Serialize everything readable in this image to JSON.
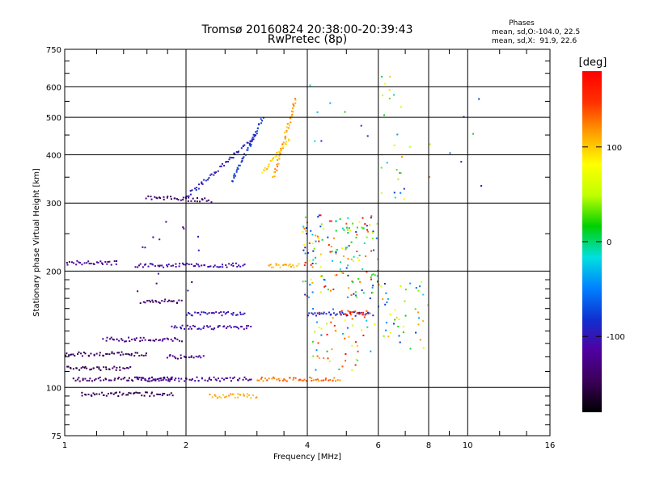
{
  "chart_data": {
    "type": "scatter",
    "title": "Tromsø 20160824 20:38:00-20:39:43",
    "subtitle": "RwPretec (8p)",
    "xlabel": "Frequency [MHz]",
    "ylabel": "Stationary phase Virtual Height [km]",
    "x_scale": "log",
    "y_scale": "log",
    "xlim": [
      1,
      16
    ],
    "ylim": [
      75,
      750
    ],
    "x_ticks": [
      1,
      2,
      4,
      6,
      8,
      10,
      16
    ],
    "y_ticks": [
      75,
      100,
      200,
      300,
      400,
      500,
      600,
      750
    ],
    "grid": true,
    "stats": {
      "heading": "Phases",
      "o_line": "mean, sd,O:-104.0, 22.5",
      "x_line": "mean, sd,X:  91.9, 22.6"
    },
    "colorbar": {
      "label": "[deg]",
      "range": [
        -180,
        180
      ],
      "ticks": [
        100,
        0,
        -100
      ],
      "colors": [
        "#000000",
        "#3a0058",
        "#5000a0",
        "#1030d0",
        "#0080ff",
        "#00e0e0",
        "#00d000",
        "#c0ff00",
        "#ffff00",
        "#ffa000",
        "#ff3000",
        "#ff0000"
      ]
    },
    "traces": [
      {
        "x": [
          1.0,
          1.35
        ],
        "y": [
          210,
          210
        ],
        "phase": -120
      },
      {
        "x": [
          1.5,
          2.8
        ],
        "y": [
          207,
          207
        ],
        "phase": -110
      },
      {
        "x": [
          3.2,
          3.8
        ],
        "y": [
          207,
          207
        ],
        "phase": 110
      },
      {
        "x": [
          1.0,
          1.6
        ],
        "y": [
          122,
          122
        ],
        "phase": -145
      },
      {
        "x": [
          1.25,
          1.95
        ],
        "y": [
          133,
          133
        ],
        "phase": -130
      },
      {
        "x": [
          1.0,
          1.45
        ],
        "y": [
          112,
          112
        ],
        "phase": -150
      },
      {
        "x": [
          1.05,
          1.85
        ],
        "y": [
          105,
          105
        ],
        "phase": -140
      },
      {
        "x": [
          1.5,
          2.9
        ],
        "y": [
          105,
          105
        ],
        "phase": -115
      },
      {
        "x": [
          1.1,
          1.85
        ],
        "y": [
          96,
          96
        ],
        "phase": -150
      },
      {
        "x": [
          2.3,
          3.0
        ],
        "y": [
          95,
          95
        ],
        "phase": 110
      },
      {
        "x": [
          3.0,
          4.8
        ],
        "y": [
          105,
          105
        ],
        "phase": 130
      },
      {
        "x": [
          1.55,
          1.95
        ],
        "y": [
          167,
          167
        ],
        "phase": -140
      },
      {
        "x": [
          1.85,
          2.9
        ],
        "y": [
          143,
          143
        ],
        "phase": -110
      },
      {
        "x": [
          2.0,
          2.8
        ],
        "y": [
          155,
          155
        ],
        "phase": -100
      },
      {
        "x": [
          1.8,
          2.2
        ],
        "y": [
          120,
          120
        ],
        "phase": -125
      },
      {
        "x": [
          4.0,
          5.8
        ],
        "y": [
          155,
          155
        ],
        "phase": -90
      },
      {
        "x": [
          4.9,
          5.7
        ],
        "y": [
          156,
          156
        ],
        "phase": 150
      },
      {
        "x": [
          1.6,
          2.3
        ],
        "y": [
          310,
          305
        ],
        "phase": -140
      },
      {
        "x": [
          2.0,
          3.0
        ],
        "y": [
          310,
          450
        ],
        "phase": -95
      },
      {
        "x": [
          2.6,
          3.1
        ],
        "y": [
          340,
          500
        ],
        "phase": -80
      },
      {
        "x": [
          3.3,
          3.75
        ],
        "y": [
          350,
          560
        ],
        "phase": 115
      },
      {
        "x": [
          3.1,
          3.6
        ],
        "y": [
          360,
          440
        ],
        "phase": 95
      }
    ],
    "scatter_regions": [
      {
        "x": [
          3.9,
          6.0
        ],
        "y": [
          170,
          280
        ],
        "n": 170,
        "phase": [
          -100,
          180
        ]
      },
      {
        "x": [
          4.1,
          5.9
        ],
        "y": [
          110,
          160
        ],
        "n": 55,
        "phase": [
          -60,
          180
        ]
      },
      {
        "x": [
          1.5,
          2.2
        ],
        "y": [
          175,
          270
        ],
        "n": 14,
        "phase": [
          -140,
          -90
        ]
      },
      {
        "x": [
          6.0,
          8.0
        ],
        "y": [
          125,
          190
        ],
        "n": 45,
        "phase": [
          -100,
          120
        ]
      },
      {
        "x": [
          6.1,
          7.2
        ],
        "y": [
          300,
          650
        ],
        "n": 26,
        "phase": [
          -100,
          120
        ]
      },
      {
        "x": [
          8.0,
          11.0
        ],
        "y": [
          300,
          560
        ],
        "n": 8,
        "phase": [
          -100,
          130
        ]
      },
      {
        "x": [
          4.0,
          5.9
        ],
        "y": [
          420,
          650
        ],
        "n": 8,
        "phase": [
          -120,
          60
        ]
      }
    ]
  }
}
